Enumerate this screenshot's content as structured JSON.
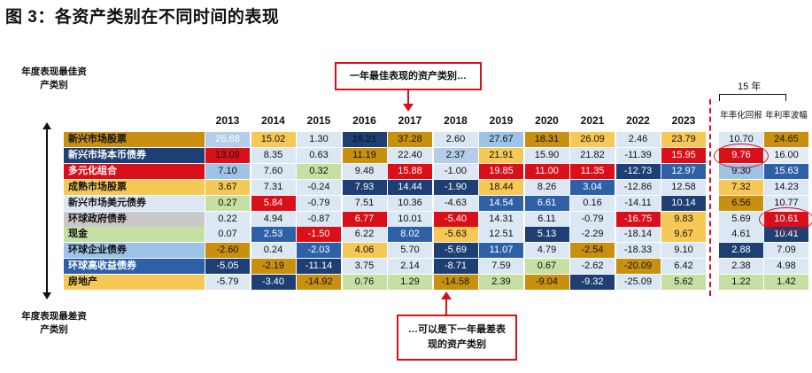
{
  "title": "图 3：各资产类别在不同时间的表现",
  "top_side_label": "年度表现最佳资产类别",
  "bottom_side_label": "年度表现最差资产类别",
  "callout_top": "一年最佳表现的资产类别…",
  "callout_bottom": "…可以是下一年最差表现的资产类别",
  "ext_bracket_label": "15 年",
  "colors": {
    "gold": "#c8900e",
    "yellow": "#f6c855",
    "red": "#d9101a",
    "navy": "#1e3f73",
    "lightblue": "#b5cde8",
    "midblue": "#dbe7f3",
    "green": "#c6dfa2",
    "grey": "#c8c8c8",
    "royal": "#2e60a8",
    "sky": "#9dc3e6",
    "pale": "#e4edf7"
  },
  "chart_data": {
    "type": "table",
    "years": [
      "2013",
      "2014",
      "2015",
      "2016",
      "2017",
      "2018",
      "2019",
      "2020",
      "2021",
      "2022",
      "2023"
    ],
    "extra_columns": [
      "年率化回报",
      "年利率波幅"
    ],
    "assets": [
      {
        "name": "新兴市场股票",
        "color": "gold",
        "text": "dark",
        "values": [
          "26.68",
          "15.02",
          "1.30",
          "16.21",
          "37.28",
          "2.60",
          "27.67",
          "18.31",
          "26.09",
          "2.46",
          "23.79"
        ],
        "ret": "10.70",
        "vol": "24.65"
      },
      {
        "name": "新兴市场本币债券",
        "color": "navy",
        "text": "light",
        "values": [
          "13.09",
          "8.35",
          "0.63",
          "11.19",
          "22.40",
          "2.37",
          "21.91",
          "15.90",
          "21.82",
          "-11.39",
          "15.95"
        ],
        "ret": "9.76",
        "vol": "16.00"
      },
      {
        "name": "多元化组合",
        "color": "red",
        "text": "light",
        "values": [
          "7.10",
          "7.60",
          "0.32",
          "9.48",
          "15.88",
          "-1.00",
          "19.85",
          "11.00",
          "11.35",
          "-12.73",
          "12.97"
        ],
        "ret": "9.30",
        "vol": "15.63"
      },
      {
        "name": "成熟市场股票",
        "color": "yellow",
        "text": "dark",
        "values": [
          "3.67",
          "7.31",
          "-0.24",
          "7.93",
          "14.44",
          "-1.90",
          "18.44",
          "8.26",
          "3.04",
          "-12.86",
          "12.58"
        ],
        "ret": "7.32",
        "vol": "14.23"
      },
      {
        "name": "新兴市场美元债券",
        "color": "midblue",
        "text": "dark",
        "values": [
          "0.27",
          "5.84",
          "-0.79",
          "7.51",
          "10.36",
          "-4.63",
          "14.54",
          "6.61",
          "0.16",
          "-14.11",
          "10.14"
        ],
        "ret": "6.56",
        "vol": "10.77"
      },
      {
        "name": "环球政府债券",
        "color": "grey",
        "text": "dark",
        "values": [
          "0.22",
          "4.94",
          "-0.87",
          "6.77",
          "10.01",
          "-5.40",
          "14.31",
          "6.11",
          "-0.79",
          "-16.75",
          "9.83"
        ],
        "ret": "5.69",
        "vol": "10.61"
      },
      {
        "name": "现金",
        "color": "green",
        "text": "dark",
        "values": [
          "0.07",
          "2.53",
          "-1.50",
          "6.22",
          "8.02",
          "-5.63",
          "12.51",
          "5.13",
          "-2.29",
          "-18.14",
          "9.67"
        ],
        "ret": "4.61",
        "vol": "10.41"
      },
      {
        "name": "环球企业债券",
        "color": "sky",
        "text": "dark",
        "values": [
          "-2.60",
          "0.24",
          "-2.03",
          "4.06",
          "5.70",
          "-5.69",
          "11.07",
          "4.79",
          "-2.54",
          "-18.33",
          "9.10"
        ],
        "ret": "2.88",
        "vol": "7.09"
      },
      {
        "name": "环球高收益债券",
        "color": "royal",
        "text": "light",
        "values": [
          "-5.05",
          "-2.19",
          "-11.14",
          "3.75",
          "2.14",
          "-8.71",
          "7.59",
          "0.67",
          "-2.62",
          "-20.09",
          "6.42"
        ],
        "ret": "2.38",
        "vol": "4.98"
      },
      {
        "name": "房地产",
        "color": "yellow",
        "text": "dark",
        "values": [
          "-5.79",
          "-3.40",
          "-14.92",
          "0.76",
          "1.29",
          "-14.58",
          "2.39",
          "-9.04",
          "-9.32",
          "-25.09",
          "5.62"
        ],
        "ret": "1.22",
        "vol": "1.42"
      }
    ],
    "cell_colors": [
      [
        "lightblue",
        "yellow",
        "midblue",
        "navy",
        "gold",
        "midblue",
        "sky",
        "gold",
        "yellow",
        "midblue",
        "yellow",
        "midblue",
        "gold"
      ],
      [
        "red",
        "midblue",
        "midblue",
        "gold",
        "midblue",
        "lightblue",
        "yellow",
        "midblue",
        "midblue",
        "midblue",
        "red",
        "red",
        "pale"
      ],
      [
        "sky",
        "midblue",
        "green",
        "midblue",
        "red",
        "midblue",
        "red",
        "red",
        "red",
        "navy",
        "royal",
        "sky",
        "royal"
      ],
      [
        "yellow",
        "midblue",
        "midblue",
        "navy",
        "navy",
        "navy",
        "yellow",
        "midblue",
        "royal",
        "midblue",
        "midblue",
        "yellow",
        "midblue"
      ],
      [
        "green",
        "red",
        "midblue",
        "midblue",
        "midblue",
        "midblue",
        "royal",
        "royal",
        "midblue",
        "midblue",
        "navy",
        "gold",
        "midblue"
      ],
      [
        "midblue",
        "midblue",
        "midblue",
        "red",
        "midblue",
        "red",
        "midblue",
        "midblue",
        "midblue",
        "red",
        "yellow",
        "midblue",
        "red"
      ],
      [
        "midblue",
        "royal",
        "red",
        "midblue",
        "royal",
        "yellow",
        "midblue",
        "navy",
        "midblue",
        "midblue",
        "yellow",
        "midblue",
        "navy"
      ],
      [
        "gold",
        "midblue",
        "royal",
        "yellow",
        "midblue",
        "navy",
        "royal",
        "midblue",
        "gold",
        "midblue",
        "midblue",
        "navy",
        "midblue"
      ],
      [
        "navy",
        "gold",
        "navy",
        "midblue",
        "midblue",
        "navy",
        "midblue",
        "green",
        "midblue",
        "gold",
        "midblue",
        "midblue",
        "midblue"
      ],
      [
        "midblue",
        "navy",
        "gold",
        "green",
        "green",
        "gold",
        "green",
        "gold",
        "navy",
        "midblue",
        "green",
        "green",
        "green"
      ]
    ],
    "light_text_cells": [
      [
        3,
        4
      ],
      [
        0,
        0
      ],
      [
        2,
        4
      ],
      [
        2,
        6
      ],
      [
        2,
        7
      ],
      [
        2,
        8
      ],
      [
        2,
        9
      ],
      [
        3,
        3
      ],
      [
        3,
        4
      ],
      [
        3,
        5
      ],
      [
        3,
        8
      ],
      [
        4,
        1
      ],
      [
        4,
        6
      ],
      [
        4,
        7
      ],
      [
        4,
        10
      ],
      [
        5,
        3
      ],
      [
        5,
        5
      ],
      [
        5,
        9
      ],
      [
        6,
        1
      ],
      [
        6,
        2
      ],
      [
        6,
        4
      ],
      [
        6,
        7
      ],
      [
        7,
        2
      ],
      [
        7,
        5
      ],
      [
        7,
        6
      ],
      [
        7,
        11
      ],
      [
        8,
        0
      ],
      [
        8,
        2
      ],
      [
        8,
        5
      ],
      [
        9,
        1
      ],
      [
        9,
        8
      ],
      [
        1,
        10
      ],
      [
        1,
        11
      ],
      [
        2,
        10
      ],
      [
        2,
        12
      ],
      [
        5,
        12
      ],
      [
        6,
        12
      ]
    ],
    "highlighted": [
      {
        "row": 1,
        "col": "ret"
      },
      {
        "row": 5,
        "col": "vol"
      }
    ]
  }
}
